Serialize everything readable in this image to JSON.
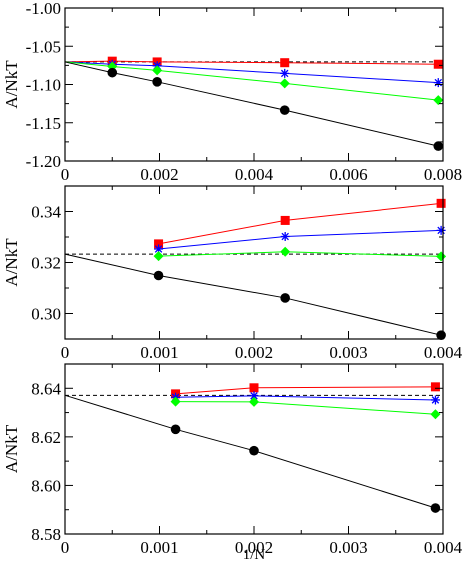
{
  "chart_data": [
    {
      "type": "line",
      "xlabel": "",
      "ylabel": "A/NkT",
      "xlim": [
        0,
        0.008
      ],
      "ylim": [
        -1.2,
        -1.0
      ],
      "x_ticks": [
        0,
        0.002,
        0.004,
        0.006,
        0.008
      ],
      "x_tick_labels": [
        "0",
        "0.002",
        "0.004",
        "0.006",
        "0.008"
      ],
      "y_ticks": [
        -1.2,
        -1.15,
        -1.1,
        -1.05,
        -1.0
      ],
      "y_tick_labels": [
        "-1.20",
        "-1.15",
        "-1.10",
        "-1.05",
        "-1.00"
      ],
      "reference_line": {
        "y": -1.0705,
        "style": "dashed",
        "color": "#000000"
      },
      "series": [
        {
          "color": "#ff0000",
          "marker": "square",
          "fit_intercept": -1.0705,
          "x": [
            0.001,
            0.00195,
            0.00465,
            0.0079
          ],
          "y": [
            -1.0695,
            -1.0705,
            -1.0715,
            -1.0735
          ]
        },
        {
          "color": "#0000ff",
          "marker": "asterisk",
          "fit_intercept": -1.0705,
          "x": [
            0.001,
            0.00195,
            0.00465,
            0.0079
          ],
          "y": [
            -1.0735,
            -1.0755,
            -1.0855,
            -1.0975
          ]
        },
        {
          "color": "#00ff00",
          "marker": "diamond",
          "fit_intercept": -1.0705,
          "x": [
            0.001,
            0.00195,
            0.00465,
            0.0079
          ],
          "y": [
            -1.0765,
            -1.0815,
            -1.0985,
            -1.1205
          ]
        },
        {
          "color": "#000000",
          "marker": "circle",
          "fit_intercept": -1.0705,
          "x": [
            0.001,
            0.00195,
            0.00465,
            0.0079
          ],
          "y": [
            -1.0845,
            -1.0965,
            -1.1335,
            -1.1805
          ]
        }
      ]
    },
    {
      "type": "line",
      "xlabel": "",
      "ylabel": "A/NkT",
      "xlim": [
        0,
        0.004
      ],
      "ylim": [
        0.29,
        0.35
      ],
      "x_ticks": [
        0,
        0.001,
        0.002,
        0.003,
        0.004
      ],
      "x_tick_labels": [
        "0",
        "0.001",
        "0.002",
        "0.003",
        "0.004"
      ],
      "y_ticks": [
        0.3,
        0.32,
        0.34
      ],
      "y_tick_labels": [
        "0.30",
        "0.32",
        "0.34"
      ],
      "y_minor_ticks": [
        0.29,
        0.31,
        0.33,
        0.35
      ],
      "reference_line": {
        "y": 0.3233,
        "style": "dashed",
        "color": "#000000"
      },
      "series": [
        {
          "color": "#ff0000",
          "marker": "square",
          "fit_intercept": null,
          "x": [
            0.00099,
            0.00233,
            0.00398
          ],
          "y": [
            0.3273,
            0.3365,
            0.3432
          ]
        },
        {
          "color": "#0000ff",
          "marker": "asterisk",
          "fit_intercept": null,
          "x": [
            0.00099,
            0.00233,
            0.00398
          ],
          "y": [
            0.3253,
            0.3302,
            0.3326
          ]
        },
        {
          "color": "#00ff00",
          "marker": "diamond",
          "fit_intercept": null,
          "x": [
            0.00099,
            0.00233,
            0.00398
          ],
          "y": [
            0.3225,
            0.3242,
            0.3224
          ]
        },
        {
          "color": "#000000",
          "marker": "circle",
          "fit_intercept": 0.3233,
          "x": [
            0.00099,
            0.00233,
            0.00398
          ],
          "y": [
            0.3149,
            0.3061,
            0.2915
          ]
        }
      ]
    },
    {
      "type": "line",
      "xlabel": "1/N",
      "ylabel": "A/NkT",
      "xlim": [
        0,
        0.004
      ],
      "ylim": [
        8.58,
        8.65
      ],
      "x_ticks": [
        0,
        0.001,
        0.002,
        0.003,
        0.004
      ],
      "x_tick_labels": [
        "0",
        "0.001",
        "0.002",
        "0.003",
        "0.004"
      ],
      "y_ticks": [
        8.58,
        8.6,
        8.62,
        8.64
      ],
      "y_tick_labels": [
        "8.58",
        "8.60",
        "8.62",
        "8.64"
      ],
      "y_minor_ticks": [
        8.59,
        8.61,
        8.63
      ],
      "reference_line": {
        "y": 8.6371,
        "style": "dashed",
        "color": "#000000"
      },
      "series": [
        {
          "color": "#ff0000",
          "marker": "square",
          "fit_intercept": null,
          "x": [
            0.00117,
            0.002,
            0.00392
          ],
          "y": [
            8.6377,
            8.6402,
            8.6406
          ]
        },
        {
          "color": "#0000ff",
          "marker": "asterisk",
          "fit_intercept": null,
          "x": [
            0.00117,
            0.002,
            0.00392
          ],
          "y": [
            8.6363,
            8.6369,
            8.6352
          ]
        },
        {
          "color": "#00ff00",
          "marker": "diamond",
          "fit_intercept": null,
          "x": [
            0.00117,
            0.002,
            0.00392
          ],
          "y": [
            8.6345,
            8.6344,
            8.6293
          ]
        },
        {
          "color": "#000000",
          "marker": "circle",
          "fit_intercept": 8.6371,
          "x": [
            0.00117,
            0.002,
            0.00392
          ],
          "y": [
            8.6231,
            8.6143,
            8.5907
          ]
        }
      ]
    }
  ]
}
